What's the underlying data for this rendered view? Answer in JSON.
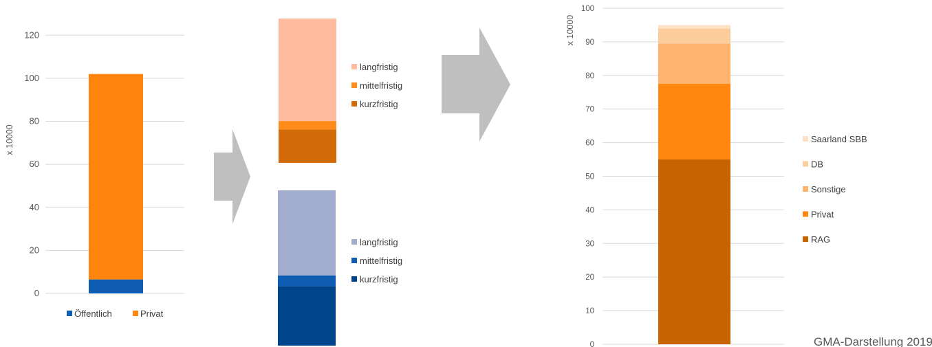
{
  "chart_data": [
    {
      "type": "bar",
      "stacked": true,
      "ylabel": "x 10000",
      "ylim": [
        0,
        130
      ],
      "yticks": [
        0,
        20,
        40,
        60,
        80,
        100,
        120
      ],
      "grid": true,
      "legend_position": "bottom",
      "categories": [
        ""
      ],
      "series": [
        {
          "name": "Öffentlich",
          "values": [
            6.5
          ],
          "color": "#0f5db3"
        },
        {
          "name": "Privat",
          "values": [
            95.5
          ],
          "color": "#ff850f"
        }
      ]
    },
    {
      "type": "bar",
      "stacked": true,
      "legend_position": "right",
      "categories": [
        ""
      ],
      "series": [
        {
          "name": "kurzfristig",
          "values": [
            16
          ],
          "color": "#d36b09"
        },
        {
          "name": "mittelfristig",
          "values": [
            4
          ],
          "color": "#ff8c1a"
        },
        {
          "name": "langfristig",
          "values": [
            49
          ],
          "color": "#ffbb9e"
        }
      ]
    },
    {
      "type": "bar",
      "stacked": true,
      "legend_position": "right",
      "categories": [
        ""
      ],
      "series": [
        {
          "name": "kurzfristig",
          "values": [
            28
          ],
          "color": "#00448c"
        },
        {
          "name": "mittelfristig",
          "values": [
            5
          ],
          "color": "#0f5db3"
        },
        {
          "name": "langfristig",
          "values": [
            40
          ],
          "color": "#a2acce"
        }
      ]
    },
    {
      "type": "bar",
      "stacked": true,
      "ylabel": "x 10000",
      "ylim": [
        0,
        100
      ],
      "yticks": [
        0,
        10,
        20,
        30,
        40,
        50,
        60,
        70,
        80,
        90,
        100
      ],
      "grid": true,
      "legend_position": "right",
      "categories": [
        ""
      ],
      "series": [
        {
          "name": "RAG",
          "values": [
            55
          ],
          "color": "#c86400"
        },
        {
          "name": "Privat",
          "values": [
            22.5
          ],
          "color": "#ff870f"
        },
        {
          "name": "Sonstige",
          "values": [
            12
          ],
          "color": "#ffb46e"
        },
        {
          "name": "DB",
          "values": [
            4.5
          ],
          "color": "#fdcc9b"
        },
        {
          "name": "Saarland SBB",
          "values": [
            1
          ],
          "color": "#fde2c6"
        }
      ]
    }
  ],
  "arrows": {
    "color": "#bfbfbf"
  },
  "credit": "GMA-Darstellung 2019"
}
